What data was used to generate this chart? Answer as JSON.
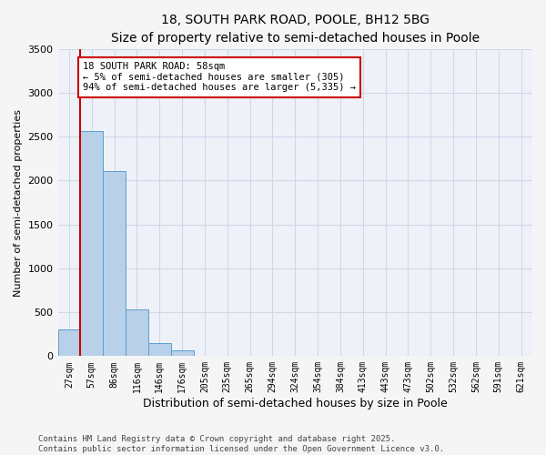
{
  "title1": "18, SOUTH PARK ROAD, POOLE, BH12 5BG",
  "title2": "Size of property relative to semi-detached houses in Poole",
  "xlabel": "Distribution of semi-detached houses by size in Poole",
  "ylabel": "Number of semi-detached properties",
  "annotation_title": "18 SOUTH PARK ROAD: 58sqm",
  "annotation_line1": "← 5% of semi-detached houses are smaller (305)",
  "annotation_line2": "94% of semi-detached houses are larger (5,335) →",
  "footer1": "Contains HM Land Registry data © Crown copyright and database right 2025.",
  "footer2": "Contains public sector information licensed under the Open Government Licence v3.0.",
  "bar_labels": [
    "27sqm",
    "57sqm",
    "86sqm",
    "116sqm",
    "146sqm",
    "176sqm",
    "205sqm",
    "235sqm",
    "265sqm",
    "294sqm",
    "324sqm",
    "354sqm",
    "384sqm",
    "413sqm",
    "443sqm",
    "473sqm",
    "502sqm",
    "532sqm",
    "562sqm",
    "591sqm",
    "621sqm"
  ],
  "bar_values": [
    305,
    2560,
    2110,
    530,
    145,
    65,
    0,
    0,
    0,
    0,
    0,
    0,
    0,
    0,
    0,
    0,
    0,
    0,
    0,
    0,
    0
  ],
  "bar_color": "#b8d0e8",
  "bar_edge_color": "#5a9fd4",
  "highlight_line_color": "#cc0000",
  "fig_bg_color": "#f5f5f5",
  "plot_bg_color": "#eef2f8",
  "grid_color": "#d0d8e8",
  "ylim": [
    0,
    3500
  ],
  "yticks": [
    0,
    500,
    1000,
    1500,
    2000,
    2500,
    3000,
    3500
  ],
  "title_fontsize": 10,
  "subtitle_fontsize": 9,
  "ylabel_fontsize": 8,
  "xlabel_fontsize": 9,
  "tick_fontsize": 7,
  "ann_fontsize": 7.5,
  "footer_fontsize": 6.5
}
